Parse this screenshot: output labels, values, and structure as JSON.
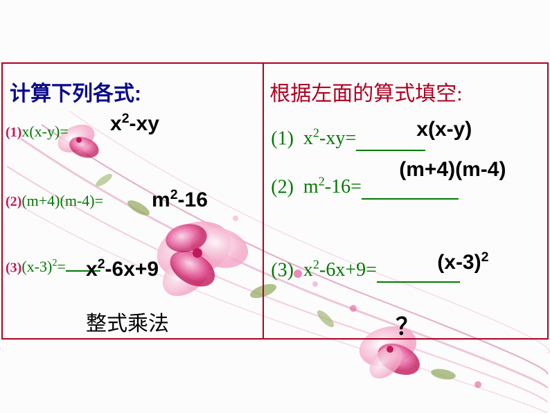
{
  "left": {
    "heading": "计算下列各式:",
    "problems": [
      {
        "num": "(1)",
        "expr_html": "x(x-y)=",
        "answer_html": "x<sup>2</sup>-xy"
      },
      {
        "num": "(2)",
        "expr_html": "(m+4)(m-4)=",
        "answer_html": "m<sup>2</sup>-16"
      },
      {
        "num": "(3)",
        "expr_html": "(x-3)<sup>2</sup>=",
        "answer_html": "x<sup>2</sup>-6x+9"
      }
    ],
    "bottom_label": "整式乘法"
  },
  "right": {
    "heading": "根据左面的算式填空:",
    "problems": [
      {
        "label": "(1)",
        "expr_html": "x<sup>2</sup>-xy=",
        "blank_width": 100,
        "answer_html": "x(x-y)"
      },
      {
        "label": "(2)",
        "expr_html": "m<sup>2</sup>-16=",
        "blank_width": 140,
        "answer_html": "(m+4)(m-4)"
      },
      {
        "label": "(3)",
        "expr_html": "x<sup>2</sup>-6x+9=",
        "blank_width": 120,
        "answer_html": "(x-3)<sup>2</sup>"
      }
    ],
    "bottom_label": "？"
  },
  "colors": {
    "border": "#b00020",
    "heading_left": "#0a0a8a",
    "heading_right": "#b00020",
    "problem_green": "#007a00",
    "problem_num_pink": "#c2185b",
    "answer_black": "#000000",
    "background": "#fdfcfc"
  },
  "decoration": {
    "petal_light": "#f8d7e5",
    "petal_mid": "#f4a8c8",
    "petal_dark": "#e55a9b",
    "petal_deep": "#c2185b",
    "leaf": "#8fa85a",
    "curve": "#d88aaf"
  }
}
